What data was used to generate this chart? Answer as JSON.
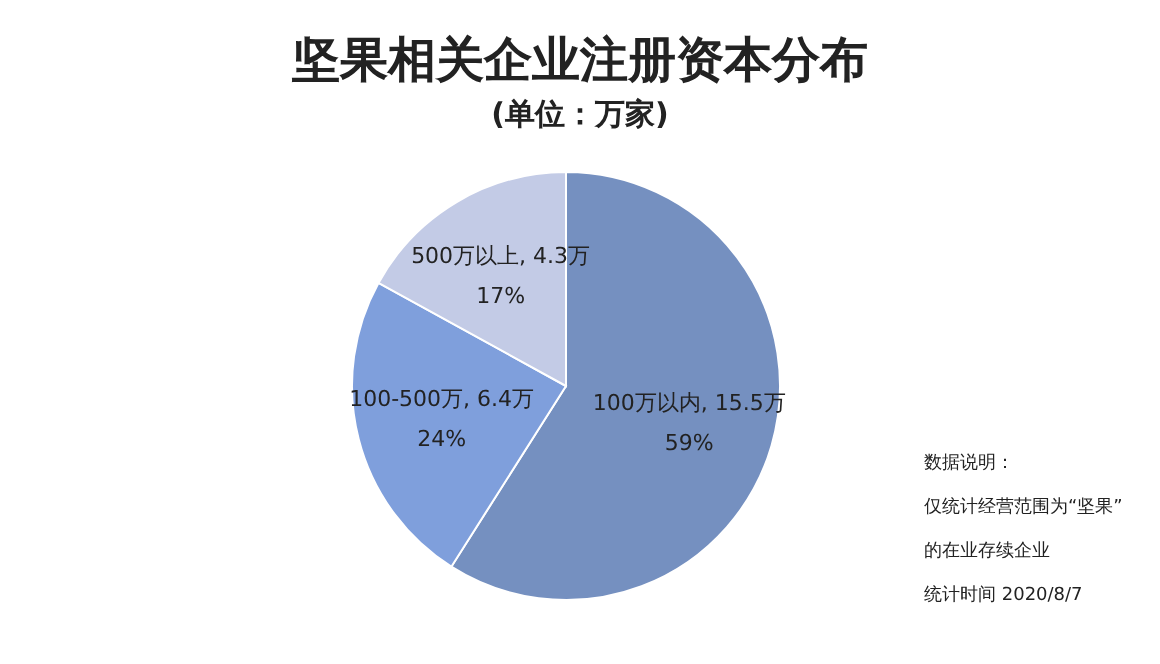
{
  "chart_data": {
    "type": "pie",
    "title": "坚果相关企业注册资本分布",
    "subtitle": "(单位：万家)",
    "categories": [
      "100万以内, 15.5万",
      "100-500万, 6.4万",
      "500万以上, 4.3万"
    ],
    "values": [
      59,
      24,
      17
    ],
    "value_labels": [
      "59%",
      "24%",
      "17%"
    ],
    "colors": [
      "#7590c0",
      "#7f9fdc",
      "#c3cbe6"
    ],
    "annotations": [
      "数据说明：",
      "仅统计经营范围为“坚果”",
      "的在业存续企业",
      "统计时间 2020/8/7"
    ]
  }
}
